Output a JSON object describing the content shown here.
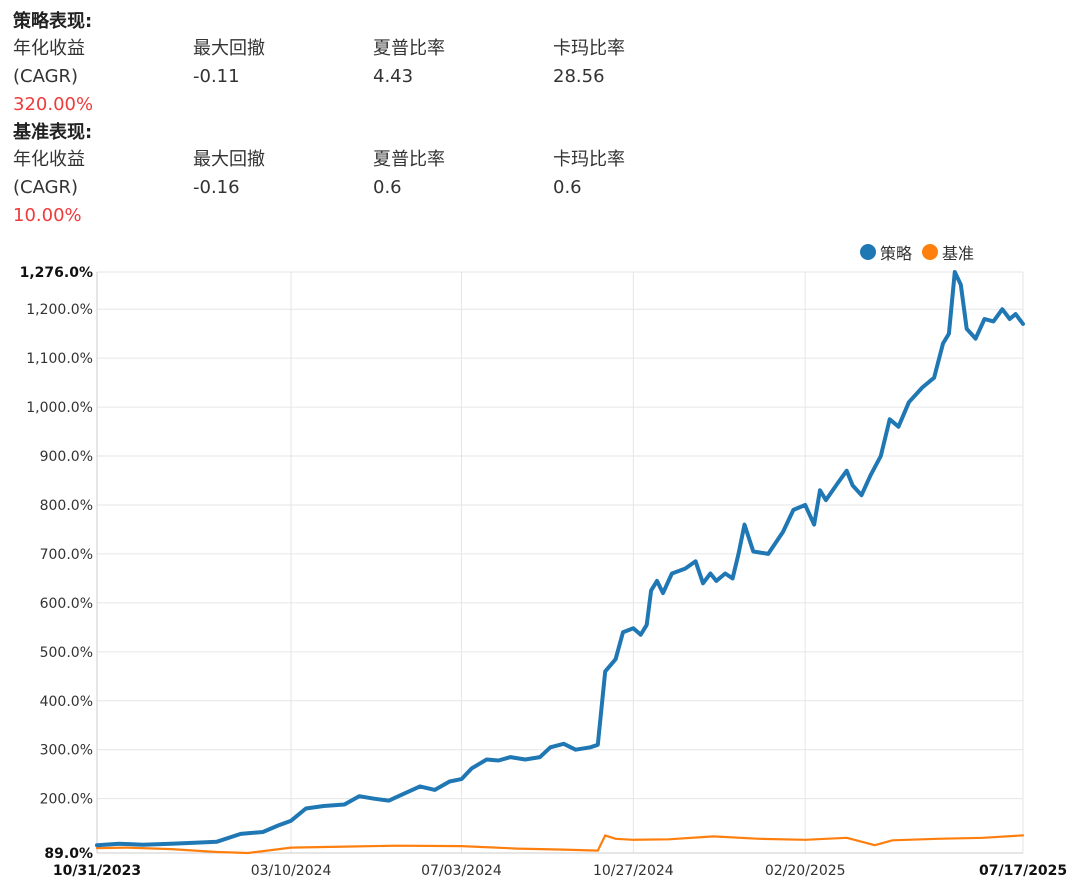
{
  "strategy": {
    "title": "策略表现:",
    "cagr_label_1": "年化收益",
    "cagr_label_2": "(CAGR)",
    "cagr_value": "320.00%",
    "mdd_label": "最大回撤",
    "mdd_value": "-0.11",
    "sharpe_label": "夏普比率",
    "sharpe_value": "4.43",
    "calmar_label": "卡玛比率",
    "calmar_value": "28.56"
  },
  "benchmark": {
    "title": "基准表现:",
    "cagr_label_1": "年化收益",
    "cagr_label_2": "(CAGR)",
    "cagr_value": "10.00%",
    "mdd_label": "最大回撤",
    "mdd_value": "-0.16",
    "sharpe_label": "夏普比率",
    "sharpe_value": "0.6",
    "calmar_label": "卡玛比率",
    "calmar_value": "0.6"
  },
  "chart_data": {
    "type": "line",
    "legend_position": "top-right",
    "grid": true,
    "ylim": [
      89,
      1276
    ],
    "y_ticks": [
      {
        "value": 89,
        "label": "89.0%",
        "bold": true
      },
      {
        "value": 200,
        "label": "200.0%"
      },
      {
        "value": 300,
        "label": "300.0%"
      },
      {
        "value": 400,
        "label": "400.0%"
      },
      {
        "value": 500,
        "label": "500.0%"
      },
      {
        "value": 600,
        "label": "600.0%"
      },
      {
        "value": 700,
        "label": "700.0%"
      },
      {
        "value": 800,
        "label": "800.0%"
      },
      {
        "value": 900,
        "label": "900.0%"
      },
      {
        "value": 1000,
        "label": "1,000.0%"
      },
      {
        "value": 1100,
        "label": "1,100.0%"
      },
      {
        "value": 1200,
        "label": "1,200.0%"
      },
      {
        "value": 1276,
        "label": "1,276.0%",
        "bold": true
      }
    ],
    "xlim": [
      "2023-10-31",
      "2025-07-17"
    ],
    "x_ticks": [
      {
        "date": "2023-10-31",
        "label": "10/31/2023",
        "bold": true
      },
      {
        "date": "2024-03-10",
        "label": "03/10/2024"
      },
      {
        "date": "2024-07-03",
        "label": "07/03/2024"
      },
      {
        "date": "2024-10-27",
        "label": "10/27/2024"
      },
      {
        "date": "2025-02-20",
        "label": "02/20/2025"
      },
      {
        "date": "2025-07-17",
        "label": "07/17/2025",
        "bold": true
      }
    ],
    "series": [
      {
        "name": "策略",
        "color": "#1f77b4",
        "points": [
          [
            "2023-10-31",
            105
          ],
          [
            "2023-11-15",
            108
          ],
          [
            "2023-12-01",
            106
          ],
          [
            "2023-12-20",
            108
          ],
          [
            "2024-01-05",
            110
          ],
          [
            "2024-01-20",
            112
          ],
          [
            "2024-02-05",
            128
          ],
          [
            "2024-02-20",
            132
          ],
          [
            "2024-03-01",
            145
          ],
          [
            "2024-03-10",
            155
          ],
          [
            "2024-03-20",
            180
          ],
          [
            "2024-04-01",
            185
          ],
          [
            "2024-04-15",
            188
          ],
          [
            "2024-04-25",
            205
          ],
          [
            "2024-05-05",
            200
          ],
          [
            "2024-05-15",
            196
          ],
          [
            "2024-05-25",
            210
          ],
          [
            "2024-06-05",
            225
          ],
          [
            "2024-06-15",
            218
          ],
          [
            "2024-06-25",
            235
          ],
          [
            "2024-07-03",
            240
          ],
          [
            "2024-07-10",
            262
          ],
          [
            "2024-07-20",
            280
          ],
          [
            "2024-07-28",
            278
          ],
          [
            "2024-08-05",
            285
          ],
          [
            "2024-08-15",
            280
          ],
          [
            "2024-08-25",
            285
          ],
          [
            "2024-09-01",
            305
          ],
          [
            "2024-09-10",
            312
          ],
          [
            "2024-09-18",
            300
          ],
          [
            "2024-09-28",
            305
          ],
          [
            "2024-10-03",
            310
          ],
          [
            "2024-10-08",
            460
          ],
          [
            "2024-10-15",
            485
          ],
          [
            "2024-10-20",
            540
          ],
          [
            "2024-10-27",
            548
          ],
          [
            "2024-11-01",
            535
          ],
          [
            "2024-11-05",
            555
          ],
          [
            "2024-11-08",
            625
          ],
          [
            "2024-11-12",
            645
          ],
          [
            "2024-11-16",
            620
          ],
          [
            "2024-11-22",
            660
          ],
          [
            "2024-12-01",
            670
          ],
          [
            "2024-12-08",
            685
          ],
          [
            "2024-12-13",
            640
          ],
          [
            "2024-12-18",
            660
          ],
          [
            "2024-12-22",
            645
          ],
          [
            "2024-12-28",
            660
          ],
          [
            "2025-01-02",
            650
          ],
          [
            "2025-01-06",
            700
          ],
          [
            "2025-01-10",
            760
          ],
          [
            "2025-01-16",
            705
          ],
          [
            "2025-01-26",
            700
          ],
          [
            "2025-02-05",
            745
          ],
          [
            "2025-02-12",
            790
          ],
          [
            "2025-02-20",
            800
          ],
          [
            "2025-02-26",
            760
          ],
          [
            "2025-03-02",
            830
          ],
          [
            "2025-03-06",
            810
          ],
          [
            "2025-03-14",
            845
          ],
          [
            "2025-03-20",
            870
          ],
          [
            "2025-03-24",
            840
          ],
          [
            "2025-03-30",
            820
          ],
          [
            "2025-04-05",
            860
          ],
          [
            "2025-04-12",
            900
          ],
          [
            "2025-04-18",
            975
          ],
          [
            "2025-04-24",
            960
          ],
          [
            "2025-05-01",
            1010
          ],
          [
            "2025-05-10",
            1040
          ],
          [
            "2025-05-18",
            1060
          ],
          [
            "2025-05-24",
            1130
          ],
          [
            "2025-05-28",
            1150
          ],
          [
            "2025-06-01",
            1276
          ],
          [
            "2025-06-05",
            1250
          ],
          [
            "2025-06-09",
            1160
          ],
          [
            "2025-06-15",
            1140
          ],
          [
            "2025-06-21",
            1180
          ],
          [
            "2025-06-27",
            1175
          ],
          [
            "2025-07-03",
            1200
          ],
          [
            "2025-07-08",
            1180
          ],
          [
            "2025-07-12",
            1190
          ],
          [
            "2025-07-17",
            1170
          ]
        ]
      },
      {
        "name": "基准",
        "color": "#ff7f0e",
        "points": [
          [
            "2023-10-31",
            99
          ],
          [
            "2023-11-20",
            100
          ],
          [
            "2023-12-20",
            97
          ],
          [
            "2024-01-20",
            91
          ],
          [
            "2024-02-10",
            89
          ],
          [
            "2024-03-10",
            100
          ],
          [
            "2024-04-15",
            102
          ],
          [
            "2024-05-20",
            104
          ],
          [
            "2024-07-03",
            103
          ],
          [
            "2024-08-10",
            98
          ],
          [
            "2024-09-10",
            96
          ],
          [
            "2024-10-03",
            94
          ],
          [
            "2024-10-08",
            125
          ],
          [
            "2024-10-15",
            118
          ],
          [
            "2024-10-27",
            116
          ],
          [
            "2024-11-20",
            117
          ],
          [
            "2024-12-20",
            123
          ],
          [
            "2025-01-20",
            118
          ],
          [
            "2025-02-20",
            116
          ],
          [
            "2025-03-20",
            120
          ],
          [
            "2025-04-08",
            105
          ],
          [
            "2025-04-20",
            115
          ],
          [
            "2025-05-20",
            118
          ],
          [
            "2025-06-20",
            120
          ],
          [
            "2025-07-17",
            125
          ]
        ]
      }
    ]
  }
}
